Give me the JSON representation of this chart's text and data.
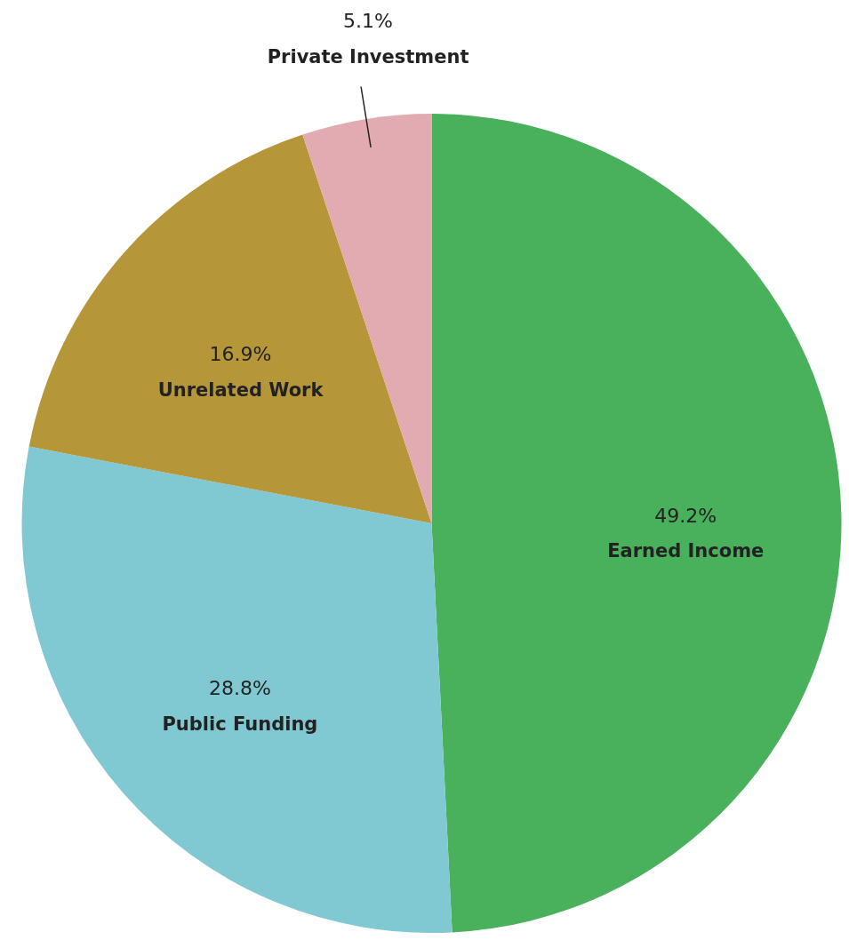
{
  "chart_data": {
    "type": "pie",
    "categories": [
      "Earned Income",
      "Public Funding",
      "Unrelated Work",
      "Private Investment"
    ],
    "values": [
      49.2,
      28.8,
      16.9,
      5.1
    ],
    "value_labels": [
      "49.2%",
      "28.8%",
      "16.9%",
      "5.1%"
    ],
    "colors": [
      "#49b05c",
      "#80c9d3",
      "#b59739",
      "#e2abb1"
    ],
    "legend": false
  }
}
